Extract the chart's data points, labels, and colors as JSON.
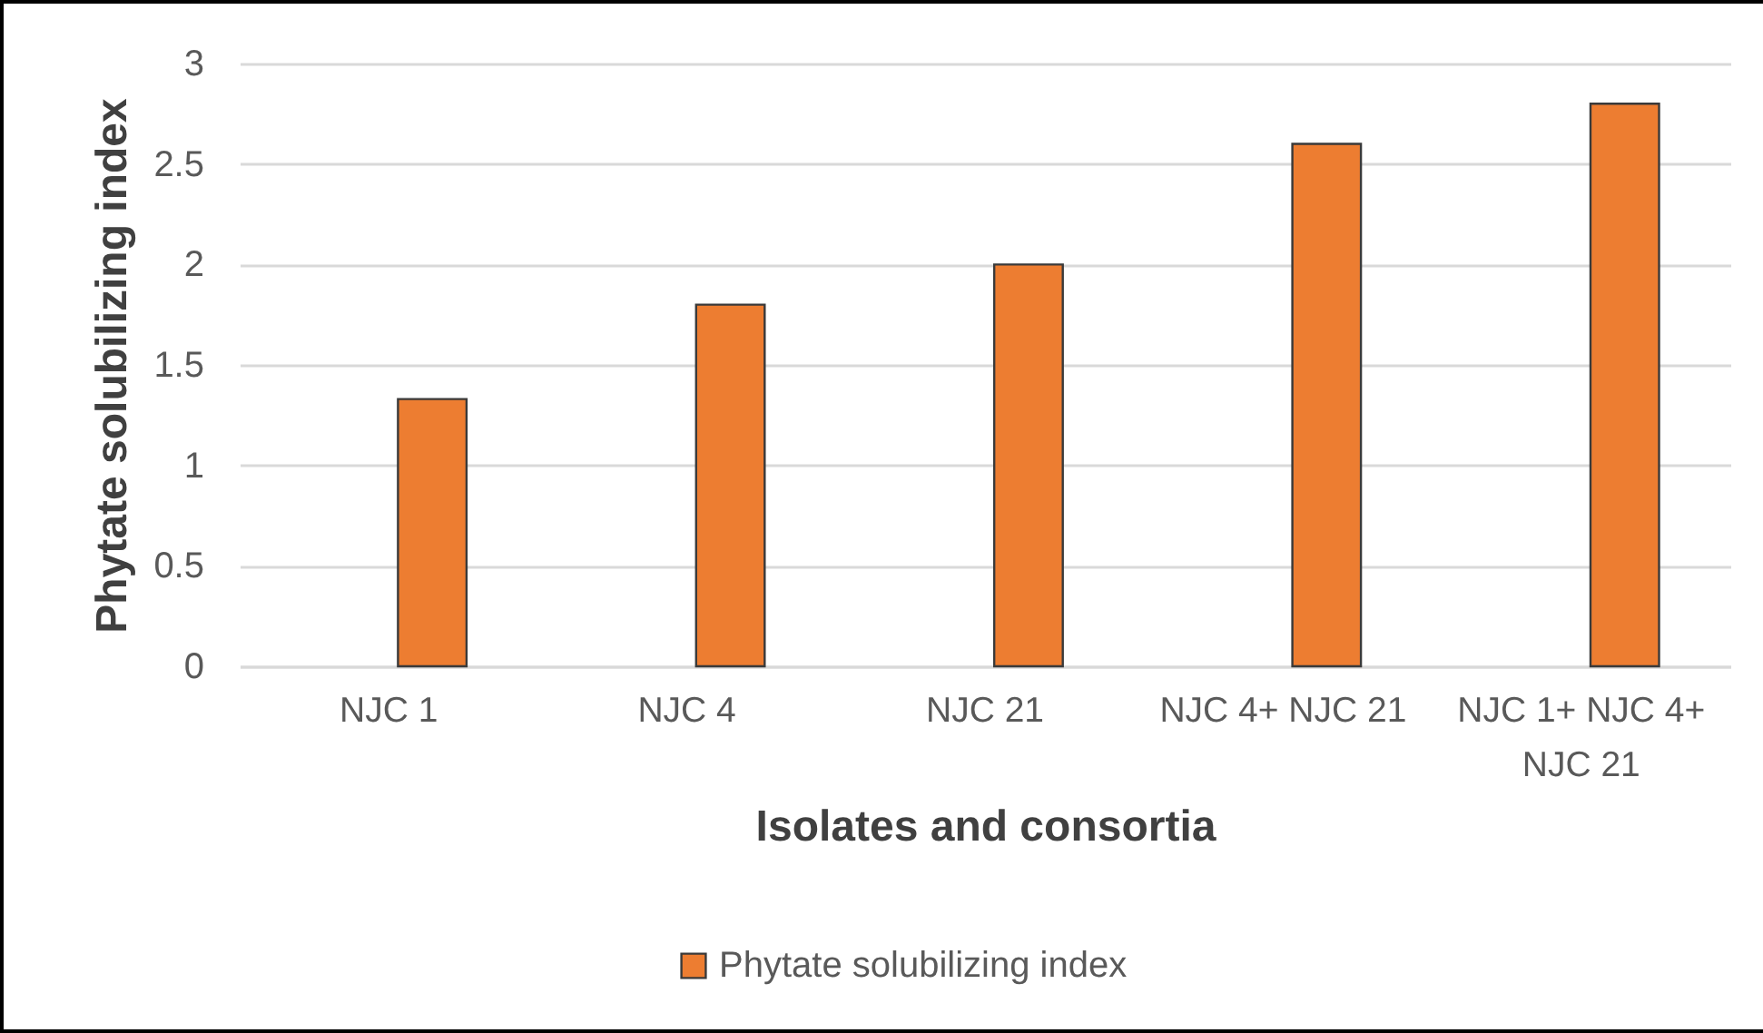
{
  "chart_data": {
    "type": "bar",
    "xlabel": "Isolates and consortia",
    "ylabel": "Phytate solubilizing index",
    "categories": [
      "NJC 1",
      "NJC 4",
      "NJC 21",
      "NJC 4+ NJC 21",
      "NJC 1+ NJC 4+ NJC 21"
    ],
    "series": [
      {
        "name": "Phytate solubilizing index",
        "color": "#ed7d31",
        "values": [
          1.33,
          1.8,
          2,
          2.6,
          2.8
        ]
      }
    ],
    "ylim": [
      0,
      3
    ],
    "yticks": [
      0,
      0.5,
      1,
      1.5,
      2,
      2.5,
      3
    ],
    "grid": "y",
    "legend": "bottom"
  }
}
